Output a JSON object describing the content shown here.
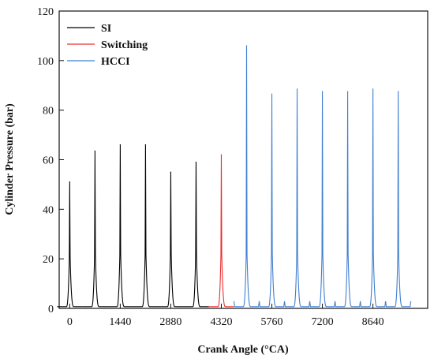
{
  "chart_data": {
    "type": "line",
    "title": "",
    "xlabel": "Crank Angle (°CA)",
    "ylabel": "Cylinder Pressure (bar)",
    "xlim": [
      -300,
      10200
    ],
    "ylim": [
      0,
      120
    ],
    "x_ticks": [
      0,
      1440,
      2880,
      4320,
      5760,
      7200,
      8640
    ],
    "y_ticks": [
      0,
      20,
      40,
      60,
      80,
      100,
      120
    ],
    "grid": false,
    "legend_position": "top-left",
    "series": [
      {
        "name": "SI",
        "color": "#000000",
        "cycle_peaks": [
          {
            "x": 0,
            "y": 51
          },
          {
            "x": 720,
            "y": 63.5
          },
          {
            "x": 1440,
            "y": 66
          },
          {
            "x": 2160,
            "y": 66
          },
          {
            "x": 2880,
            "y": 55
          },
          {
            "x": 3600,
            "y": 59
          }
        ]
      },
      {
        "name": "Switching",
        "color": "#e8302e",
        "cycle_peaks": [
          {
            "x": 4320,
            "y": 62
          }
        ]
      },
      {
        "name": "HCCI",
        "color": "#3f7fd0",
        "cycle_peaks": [
          {
            "x": 5040,
            "y": 106
          },
          {
            "x": 5760,
            "y": 86.5
          },
          {
            "x": 6480,
            "y": 88.5
          },
          {
            "x": 7200,
            "y": 87.5
          },
          {
            "x": 7920,
            "y": 87.5
          },
          {
            "x": 8640,
            "y": 88.5
          },
          {
            "x": 9360,
            "y": 87.5
          }
        ]
      }
    ]
  }
}
